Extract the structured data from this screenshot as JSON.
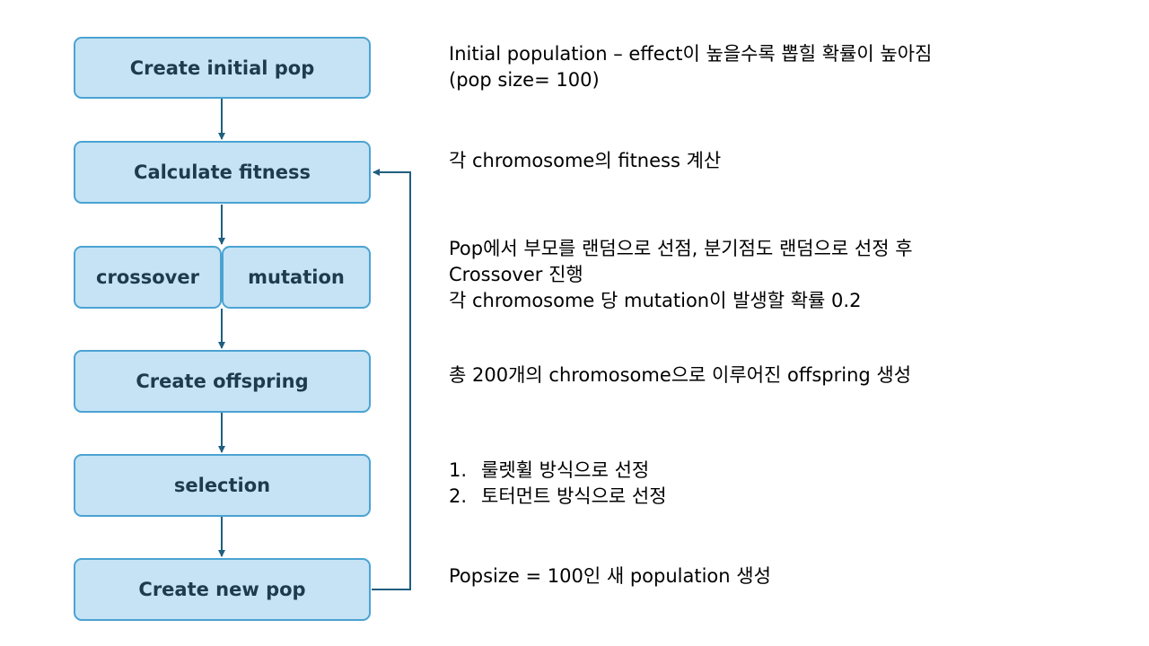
{
  "flow": {
    "create_initial_pop": "Create  initial pop",
    "calculate_fitness": "Calculate fitness",
    "crossover": "crossover",
    "mutation": "mutation",
    "create_offspring": "Create  offspring",
    "selection": "selection",
    "create_new_pop": "Create  new pop"
  },
  "descriptions": {
    "initial": [
      "Initial population – effect이 높을수록 뽑힐 확률이 높아짐",
      "(pop size= 100)"
    ],
    "fitness": "각 chromosome의  fitness 계산",
    "crossover_mutation": [
      "Pop에서 부모를 랜덤으로 선점, 분기점도 랜덤으로 선정 후",
      "Crossover 진행",
      "각 chromosome 당 mutation이 발생할 확률 0.2"
    ],
    "offspring": "총 200개의 chromosome으로 이루어진 offspring 생성",
    "selection": [
      {
        "num": "1.",
        "text": "룰렛휠 방식으로 선정"
      },
      {
        "num": "2.",
        "text": "토터먼트 방식으로 선정"
      }
    ],
    "new_pop": "Popsize = 100인 새 population 생성"
  },
  "colors": {
    "box_fill": "#c5e3f5",
    "box_border": "#4ba3d2",
    "box_text": "#1f3a4e",
    "connector": "#1f5f7f"
  }
}
